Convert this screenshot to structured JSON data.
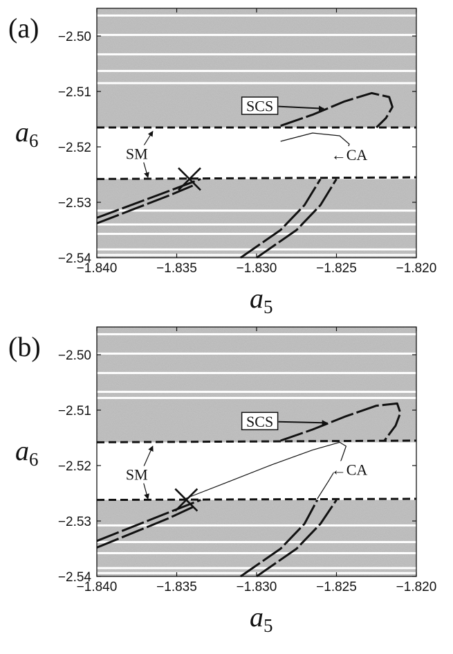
{
  "figure": {
    "panels": [
      "(a)",
      "(b)"
    ]
  },
  "chart_data": [
    {
      "type": "line",
      "panel_label": "(a)",
      "xlabel": "a",
      "xlabel_subscript": "5",
      "ylabel": "a",
      "ylabel_subscript": "6",
      "xlim": [
        -1.84,
        -1.82
      ],
      "ylim": [
        -2.54,
        -2.495
      ],
      "x_ticks": [
        -1.84,
        -1.835,
        -1.83,
        -1.825,
        -1.82
      ],
      "x_tick_labels": [
        "−1.840",
        "−1.835",
        "−1.830",
        "−1.825",
        "−1.820"
      ],
      "y_ticks": [
        -2.5,
        -2.51,
        -2.52,
        -2.53,
        -2.54
      ],
      "y_tick_labels": [
        "−2.50",
        "−2.51",
        "−2.52",
        "−2.53",
        "−2.54"
      ],
      "background": "gray speckled chaotic region with a clear horizontal band between the SM lines",
      "clear_bands": [
        -2.4963,
        -2.4998,
        -2.5033,
        -2.5063,
        -2.5085,
        -2.5187,
        -2.5194,
        -2.5202,
        -2.5215,
        -2.5228,
        -2.5248,
        -2.5315,
        -2.534,
        -2.5357,
        -2.5385,
        -2.5395
      ],
      "gap_region": [
        -2.5258,
        -2.5165
      ],
      "series": [
        {
          "role": "SM upper",
          "style": "dashed",
          "x": [
            -1.84,
            -1.82
          ],
          "y": [
            -2.5165,
            -2.5165
          ]
        },
        {
          "role": "SM lower",
          "style": "dashed",
          "x": [
            -1.84,
            -1.82
          ],
          "y": [
            -2.5258,
            -2.5255
          ]
        },
        {
          "role": "SCS",
          "style": "long-dash",
          "x": [
            -1.8285,
            -1.8265,
            -1.8245,
            -1.8228,
            -1.8217,
            -1.8215,
            -1.8219,
            -1.8225
          ],
          "y": [
            -2.5162,
            -2.5142,
            -2.5118,
            -2.5103,
            -2.511,
            -2.5128,
            -2.5148,
            -2.5165
          ]
        },
        {
          "role": "CA",
          "style": "thin",
          "x": [
            -1.8285,
            -1.8265,
            -1.8248,
            -1.8242,
            -1.8244,
            -1.8249
          ],
          "y": [
            -2.519,
            -2.5175,
            -2.518,
            -2.5195,
            -2.5212,
            -2.5227
          ]
        },
        {
          "role": "lower-left pair 1",
          "style": "long-dash",
          "x": [
            -1.84,
            -1.8358,
            -1.8335
          ],
          "y": [
            -2.5328,
            -2.5283,
            -2.5258
          ]
        },
        {
          "role": "lower-left pair 2",
          "style": "long-dash",
          "x": [
            -1.84,
            -1.8355,
            -1.834
          ],
          "y": [
            -2.5338,
            -2.5288,
            -2.527
          ]
        },
        {
          "role": "lower-right pair 1",
          "style": "long-dash",
          "x": [
            -1.831,
            -1.8285,
            -1.827,
            -1.826
          ],
          "y": [
            -2.54,
            -2.535,
            -2.5305,
            -2.5258
          ]
        },
        {
          "role": "lower-right pair 2",
          "style": "long-dash",
          "x": [
            -1.83,
            -1.8275,
            -1.826,
            -1.825
          ],
          "y": [
            -2.54,
            -2.535,
            -2.5305,
            -2.5258
          ]
        }
      ],
      "marker": {
        "symbol": "X",
        "x": -1.8342,
        "y": -2.5258
      },
      "annotations": [
        {
          "text": "SCS",
          "boxed": true,
          "x": -1.8298,
          "y": -2.5127,
          "arrow_to": [
            -1.8258,
            -2.5131
          ]
        },
        {
          "text": "SM",
          "boxed": false,
          "x": -1.8375,
          "y": -2.5213,
          "arrow_to": [
            -1.8365,
            -2.5172
          ]
        },
        {
          "text": "SM",
          "boxed": false,
          "x": -1.8375,
          "y": -2.5213,
          "arrow_to": [
            -1.8368,
            -2.5255
          ]
        },
        {
          "text": "←CA",
          "boxed": false,
          "x": -1.8242,
          "y": -2.5215,
          "arrow_to": null
        }
      ]
    },
    {
      "type": "line",
      "panel_label": "(b)",
      "xlabel": "a",
      "xlabel_subscript": "5",
      "ylabel": "a",
      "ylabel_subscript": "6",
      "xlim": [
        -1.84,
        -1.82
      ],
      "ylim": [
        -2.54,
        -2.495
      ],
      "x_ticks": [
        -1.84,
        -1.835,
        -1.83,
        -1.825,
        -1.82
      ],
      "x_tick_labels": [
        "−1.840",
        "−1.835",
        "−1.830",
        "−1.825",
        "−1.820"
      ],
      "y_ticks": [
        -2.5,
        -2.51,
        -2.52,
        -2.53,
        -2.54
      ],
      "y_tick_labels": [
        "−2.50",
        "−2.51",
        "−2.52",
        "−2.53",
        "−2.54"
      ],
      "background": "gray speckled chaotic region with a clear horizontal band between the SM lines",
      "clear_bands": [
        -2.4963,
        -2.4998,
        -2.5033,
        -2.5067,
        -2.5078,
        -2.5308,
        -2.5338,
        -2.5358,
        -2.5385,
        -2.5394
      ],
      "gap_region": [
        -2.5262,
        -2.5158
      ],
      "series": [
        {
          "role": "SM upper",
          "style": "dashed",
          "x": [
            -1.84,
            -1.82
          ],
          "y": [
            -2.5158,
            -2.5155
          ]
        },
        {
          "role": "SM lower",
          "style": "dashed",
          "x": [
            -1.84,
            -1.82
          ],
          "y": [
            -2.5262,
            -2.526
          ]
        },
        {
          "role": "SCS",
          "style": "long-dash",
          "x": [
            -1.8285,
            -1.8265,
            -1.8245,
            -1.8225,
            -1.8212,
            -1.821,
            -1.8213,
            -1.822
          ],
          "y": [
            -2.5155,
            -2.5135,
            -2.5112,
            -2.5092,
            -2.5088,
            -2.5105,
            -2.5128,
            -2.5155
          ]
        },
        {
          "role": "CA",
          "style": "thin",
          "x": [
            -1.8345,
            -1.832,
            -1.829,
            -1.8265,
            -1.8248,
            -1.8244,
            -1.8247,
            -1.8255,
            -1.8262
          ],
          "y": [
            -2.526,
            -2.5232,
            -2.5198,
            -2.5172,
            -2.5158,
            -2.5165,
            -2.519,
            -2.5228,
            -2.526
          ]
        },
        {
          "role": "lower-left pair 1",
          "style": "long-dash",
          "x": [
            -1.84,
            -1.8358,
            -1.8335
          ],
          "y": [
            -2.5336,
            -2.5288,
            -2.5262
          ]
        },
        {
          "role": "lower-left pair 2",
          "style": "long-dash",
          "x": [
            -1.84,
            -1.8355,
            -1.834
          ],
          "y": [
            -2.5348,
            -2.5295,
            -2.5275
          ]
        },
        {
          "role": "lower-right pair 1",
          "style": "long-dash",
          "x": [
            -1.831,
            -1.8285,
            -1.827,
            -1.8262
          ],
          "y": [
            -2.54,
            -2.535,
            -2.5305,
            -2.5262
          ]
        },
        {
          "role": "lower-right pair 2",
          "style": "long-dash",
          "x": [
            -1.83,
            -1.8275,
            -1.826,
            -1.825
          ],
          "y": [
            -2.54,
            -2.535,
            -2.5305,
            -2.5262
          ]
        }
      ],
      "marker": {
        "symbol": "X",
        "x": -1.8344,
        "y": -2.5262
      },
      "annotations": [
        {
          "text": "SCS",
          "boxed": true,
          "x": -1.8298,
          "y": -2.5121,
          "arrow_to": [
            -1.8256,
            -2.5123
          ]
        },
        {
          "text": "SM",
          "boxed": false,
          "x": -1.8375,
          "y": -2.5217,
          "arrow_to": [
            -1.8365,
            -2.5165
          ]
        },
        {
          "text": "SM",
          "boxed": false,
          "x": -1.8375,
          "y": -2.5217,
          "arrow_to": [
            -1.8368,
            -2.526
          ]
        },
        {
          "text": "←CA",
          "boxed": false,
          "x": -1.8242,
          "y": -2.5208,
          "arrow_to": null
        }
      ]
    }
  ]
}
